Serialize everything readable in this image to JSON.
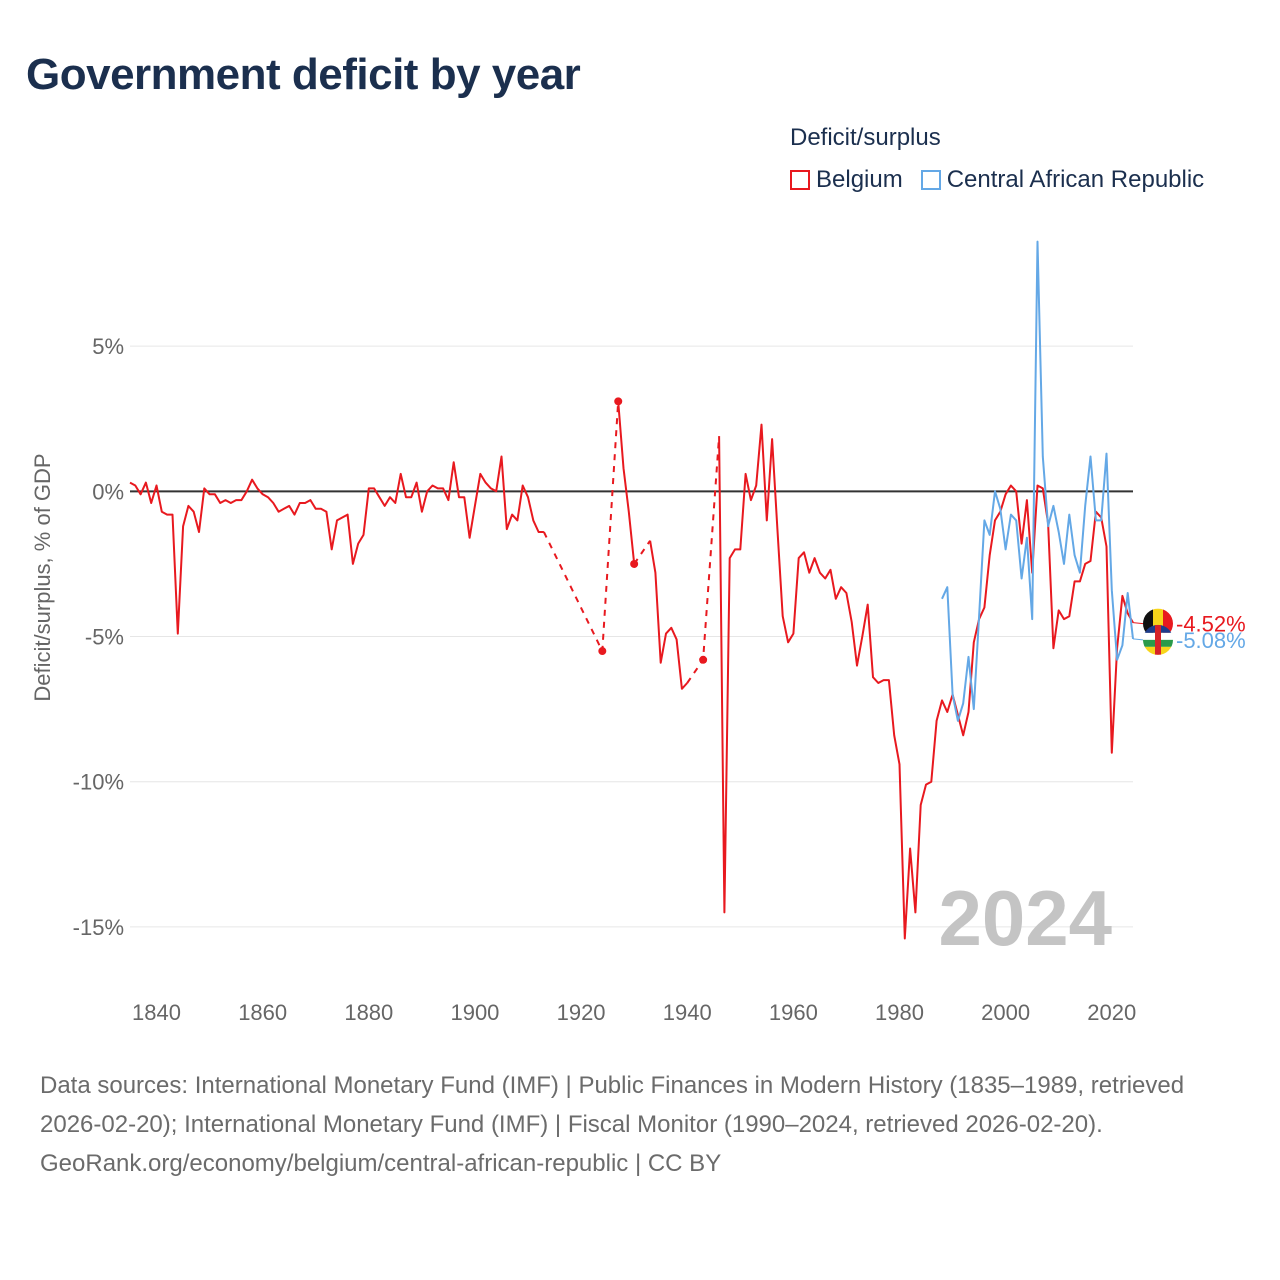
{
  "title": "Government deficit by year",
  "legend_title": "Deficit/surplus",
  "footer": {
    "sources": "Data sources: International Monetary Fund (IMF) | Public Finances in Modern History (1835–1989, retrieved 2026-02-20); International Monetary Fund (IMF) | Fiscal Monitor (1990–2024, retrieved 2026-02-20).",
    "url": "GeoRank.org/economy/belgium/central-african-republic | CC BY"
  },
  "colors": {
    "belgium": "#e8191f",
    "car": "#64a8e6",
    "axis": "#333333",
    "grid": "#e6e6e6",
    "tick": "#666666",
    "year": "#c4c4c4"
  },
  "chart_data": {
    "type": "line",
    "title": "Government deficit by year",
    "xlabel": "",
    "ylabel": "Deficit/surplus, % of GDP",
    "xlim": [
      1835,
      2024
    ],
    "ylim": [
      -17,
      9
    ],
    "y_ticks": [
      5,
      0,
      -5,
      -10,
      -15
    ],
    "y_tick_labels": [
      "5%",
      "0%",
      "-5%",
      "-10%",
      "-15%"
    ],
    "x_ticks": [
      1840,
      1860,
      1880,
      1900,
      1920,
      1940,
      1960,
      1980,
      2000,
      2020
    ],
    "x_tick_labels": [
      "1840",
      "1860",
      "1880",
      "1900",
      "1920",
      "1940",
      "1960",
      "1980",
      "2000",
      "2020"
    ],
    "year_label": "2024",
    "series": [
      {
        "name": "Belgium",
        "color": "#e8191f",
        "end_label": "-4.52%",
        "segments": [
          [
            [
              1835,
              0.3
            ],
            [
              1836,
              0.2
            ],
            [
              1837,
              -0.1
            ],
            [
              1838,
              0.3
            ],
            [
              1839,
              -0.4
            ],
            [
              1840,
              0.2
            ],
            [
              1841,
              -0.7
            ],
            [
              1842,
              -0.8
            ],
            [
              1843,
              -0.8
            ],
            [
              1844,
              -4.9
            ],
            [
              1845,
              -1.2
            ],
            [
              1846,
              -0.5
            ],
            [
              1847,
              -0.7
            ],
            [
              1848,
              -1.4
            ],
            [
              1849,
              0.1
            ],
            [
              1850,
              -0.1
            ],
            [
              1851,
              -0.1
            ],
            [
              1852,
              -0.4
            ],
            [
              1853,
              -0.3
            ],
            [
              1854,
              -0.4
            ],
            [
              1855,
              -0.3
            ],
            [
              1856,
              -0.3
            ],
            [
              1857,
              0.0
            ],
            [
              1858,
              0.4
            ],
            [
              1859,
              0.1
            ],
            [
              1860,
              -0.1
            ],
            [
              1861,
              -0.2
            ],
            [
              1862,
              -0.4
            ],
            [
              1863,
              -0.7
            ],
            [
              1864,
              -0.6
            ],
            [
              1865,
              -0.5
            ],
            [
              1866,
              -0.8
            ],
            [
              1867,
              -0.4
            ],
            [
              1868,
              -0.4
            ],
            [
              1869,
              -0.3
            ],
            [
              1870,
              -0.6
            ],
            [
              1871,
              -0.6
            ],
            [
              1872,
              -0.7
            ],
            [
              1873,
              -2.0
            ],
            [
              1874,
              -1.0
            ],
            [
              1875,
              -0.9
            ],
            [
              1876,
              -0.8
            ],
            [
              1877,
              -2.5
            ],
            [
              1878,
              -1.8
            ],
            [
              1879,
              -1.5
            ],
            [
              1880,
              0.1
            ],
            [
              1881,
              0.1
            ],
            [
              1882,
              -0.2
            ],
            [
              1883,
              -0.5
            ],
            [
              1884,
              -0.2
            ],
            [
              1885,
              -0.4
            ],
            [
              1886,
              0.6
            ],
            [
              1887,
              -0.2
            ],
            [
              1888,
              -0.2
            ],
            [
              1889,
              0.3
            ],
            [
              1890,
              -0.7
            ],
            [
              1891,
              0.0
            ],
            [
              1892,
              0.2
            ],
            [
              1893,
              0.1
            ],
            [
              1894,
              0.1
            ],
            [
              1895,
              -0.3
            ],
            [
              1896,
              1.0
            ],
            [
              1897,
              -0.2
            ],
            [
              1898,
              -0.2
            ],
            [
              1899,
              -1.6
            ],
            [
              1900,
              -0.5
            ],
            [
              1901,
              0.6
            ],
            [
              1902,
              0.3
            ],
            [
              1903,
              0.1
            ],
            [
              1904,
              0.0
            ],
            [
              1905,
              1.2
            ],
            [
              1906,
              -1.3
            ],
            [
              1907,
              -0.8
            ],
            [
              1908,
              -1.0
            ],
            [
              1909,
              0.2
            ],
            [
              1910,
              -0.2
            ],
            [
              1911,
              -1.0
            ],
            [
              1912,
              -1.4
            ],
            [
              1913,
              -1.4
            ]
          ],
          [
            [
              1927,
              3.1
            ],
            [
              1928,
              0.8
            ],
            [
              1929,
              -0.7
            ],
            [
              1930,
              -2.5
            ]
          ],
          [
            [
              1933,
              -1.7
            ],
            [
              1934,
              -2.8
            ],
            [
              1935,
              -5.9
            ],
            [
              1936,
              -4.9
            ],
            [
              1937,
              -4.7
            ],
            [
              1938,
              -5.1
            ],
            [
              1939,
              -6.8
            ],
            [
              1940,
              -6.6
            ]
          ],
          [
            [
              1946,
              1.9
            ],
            [
              1947,
              -14.5
            ],
            [
              1948,
              -2.3
            ],
            [
              1949,
              -2.0
            ],
            [
              1950,
              -2.0
            ],
            [
              1951,
              0.6
            ],
            [
              1952,
              -0.3
            ],
            [
              1953,
              0.2
            ],
            [
              1954,
              2.3
            ],
            [
              1955,
              -1.0
            ],
            [
              1956,
              1.8
            ],
            [
              1957,
              -1.3
            ],
            [
              1958,
              -4.3
            ],
            [
              1959,
              -5.2
            ],
            [
              1960,
              -4.9
            ],
            [
              1961,
              -2.3
            ],
            [
              1962,
              -2.1
            ],
            [
              1963,
              -2.8
            ],
            [
              1964,
              -2.3
            ],
            [
              1965,
              -2.8
            ],
            [
              1966,
              -3.0
            ],
            [
              1967,
              -2.7
            ],
            [
              1968,
              -3.7
            ],
            [
              1969,
              -3.3
            ],
            [
              1970,
              -3.5
            ],
            [
              1971,
              -4.5
            ],
            [
              1972,
              -6.0
            ],
            [
              1973,
              -5.0
            ],
            [
              1974,
              -3.9
            ],
            [
              1975,
              -6.4
            ],
            [
              1976,
              -6.6
            ],
            [
              1977,
              -6.5
            ],
            [
              1978,
              -6.5
            ],
            [
              1979,
              -8.4
            ],
            [
              1980,
              -9.4
            ],
            [
              1981,
              -15.4
            ],
            [
              1982,
              -12.3
            ],
            [
              1983,
              -14.5
            ],
            [
              1984,
              -10.8
            ],
            [
              1985,
              -10.1
            ],
            [
              1986,
              -10.0
            ],
            [
              1987,
              -7.9
            ],
            [
              1988,
              -7.2
            ],
            [
              1989,
              -7.6
            ],
            [
              1990,
              -7.0
            ],
            [
              1991,
              -7.7
            ],
            [
              1992,
              -8.4
            ],
            [
              1993,
              -7.6
            ],
            [
              1994,
              -5.2
            ],
            [
              1995,
              -4.4
            ],
            [
              1996,
              -4.0
            ],
            [
              1997,
              -2.2
            ],
            [
              1998,
              -1.0
            ],
            [
              1999,
              -0.7
            ],
            [
              2000,
              -0.1
            ],
            [
              2001,
              0.2
            ],
            [
              2002,
              0.0
            ],
            [
              2003,
              -1.8
            ],
            [
              2004,
              -0.3
            ],
            [
              2005,
              -2.8
            ],
            [
              2006,
              0.2
            ],
            [
              2007,
              0.1
            ],
            [
              2008,
              -1.1
            ],
            [
              2009,
              -5.4
            ],
            [
              2010,
              -4.1
            ],
            [
              2011,
              -4.4
            ],
            [
              2012,
              -4.3
            ],
            [
              2013,
              -3.1
            ],
            [
              2014,
              -3.1
            ],
            [
              2015,
              -2.5
            ],
            [
              2016,
              -2.4
            ],
            [
              2017,
              -0.7
            ],
            [
              2018,
              -0.9
            ],
            [
              2019,
              -1.9
            ],
            [
              2020,
              -9.0
            ],
            [
              2021,
              -5.4
            ],
            [
              2022,
              -3.6
            ],
            [
              2023,
              -4.2
            ],
            [
              2024,
              -4.52
            ]
          ]
        ],
        "gaps": [
          [
            [
              1913,
              -1.4
            ],
            [
              1924,
              -5.5
            ],
            [
              1927,
              3.1
            ]
          ],
          [
            [
              1930,
              -2.5
            ],
            [
              1933,
              -1.7
            ]
          ],
          [
            [
              1940,
              -6.6
            ],
            [
              1943,
              -5.8
            ],
            [
              1946,
              1.9
            ]
          ]
        ],
        "markers": [
          [
            1924,
            -5.5
          ],
          [
            1927,
            3.1
          ],
          [
            1930,
            -2.5
          ],
          [
            1943,
            -5.8
          ]
        ]
      },
      {
        "name": "Central African Republic",
        "color": "#64a8e6",
        "end_label": "-5.08%",
        "segments": [
          [
            [
              1988,
              -3.7
            ],
            [
              1989,
              -3.3
            ],
            [
              1990,
              -7.0
            ],
            [
              1991,
              -7.9
            ],
            [
              1992,
              -7.3
            ],
            [
              1993,
              -5.7
            ],
            [
              1994,
              -7.5
            ],
            [
              1995,
              -4.3
            ],
            [
              1996,
              -1.0
            ],
            [
              1997,
              -1.5
            ],
            [
              1998,
              0.0
            ],
            [
              1999,
              -0.6
            ],
            [
              2000,
              -2.0
            ],
            [
              2001,
              -0.8
            ],
            [
              2002,
              -1.0
            ],
            [
              2003,
              -3.0
            ],
            [
              2004,
              -1.6
            ],
            [
              2005,
              -4.4
            ],
            [
              2006,
              8.6
            ],
            [
              2007,
              1.2
            ],
            [
              2008,
              -1.2
            ],
            [
              2009,
              -0.5
            ],
            [
              2010,
              -1.4
            ],
            [
              2011,
              -2.5
            ],
            [
              2012,
              -0.8
            ],
            [
              2013,
              -2.2
            ],
            [
              2014,
              -2.8
            ],
            [
              2015,
              -0.5
            ],
            [
              2016,
              1.2
            ],
            [
              2017,
              -1.0
            ],
            [
              2018,
              -1.0
            ],
            [
              2019,
              1.3
            ],
            [
              2020,
              -3.4
            ],
            [
              2021,
              -5.8
            ],
            [
              2022,
              -5.3
            ],
            [
              2023,
              -3.5
            ],
            [
              2024,
              -5.08
            ]
          ]
        ],
        "gaps": [],
        "markers": []
      }
    ]
  }
}
